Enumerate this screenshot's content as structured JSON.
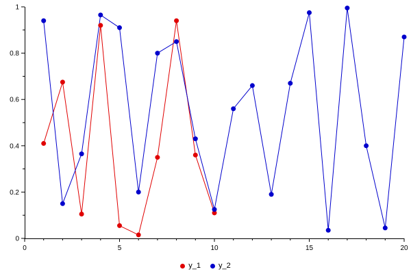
{
  "chart_data": {
    "type": "line",
    "title": "",
    "xlabel": "",
    "ylabel": "",
    "xlim": [
      0,
      20
    ],
    "ylim": [
      0,
      1
    ],
    "xticks": [
      0,
      5,
      10,
      15,
      20
    ],
    "xtick_labels": [
      "0",
      "5",
      "10",
      "15",
      "20"
    ],
    "yticks": [
      0,
      0.2,
      0.4,
      0.6,
      0.8,
      1
    ],
    "ytick_labels": [
      "0",
      "0.2",
      "0.4",
      "0.6",
      "0.8",
      "1"
    ],
    "x_minor_step": 1,
    "y_minor_step": 0.1,
    "grid": false,
    "legend_position": "bottom-center",
    "axis_color": "#000000",
    "marker_shape": "circle",
    "series": [
      {
        "name": "y_1",
        "color": "#e00000",
        "marker": "circle",
        "x": [
          1,
          2,
          3,
          4,
          5,
          6,
          7,
          8,
          9,
          10
        ],
        "values": [
          0.41,
          0.675,
          0.105,
          0.92,
          0.055,
          0.015,
          0.35,
          0.94,
          0.36,
          0.11
        ]
      },
      {
        "name": "y_2",
        "color": "#0000cc",
        "marker": "circle",
        "x": [
          1,
          2,
          3,
          4,
          5,
          6,
          7,
          8,
          9,
          10,
          11,
          12,
          13,
          14,
          15,
          16,
          17,
          18,
          19,
          20
        ],
        "values": [
          0.94,
          0.15,
          0.365,
          0.965,
          0.91,
          0.2,
          0.8,
          0.85,
          0.43,
          0.125,
          0.56,
          0.66,
          0.19,
          0.67,
          0.975,
          0.035,
          0.995,
          0.4,
          0.045,
          0.87
        ]
      }
    ]
  }
}
